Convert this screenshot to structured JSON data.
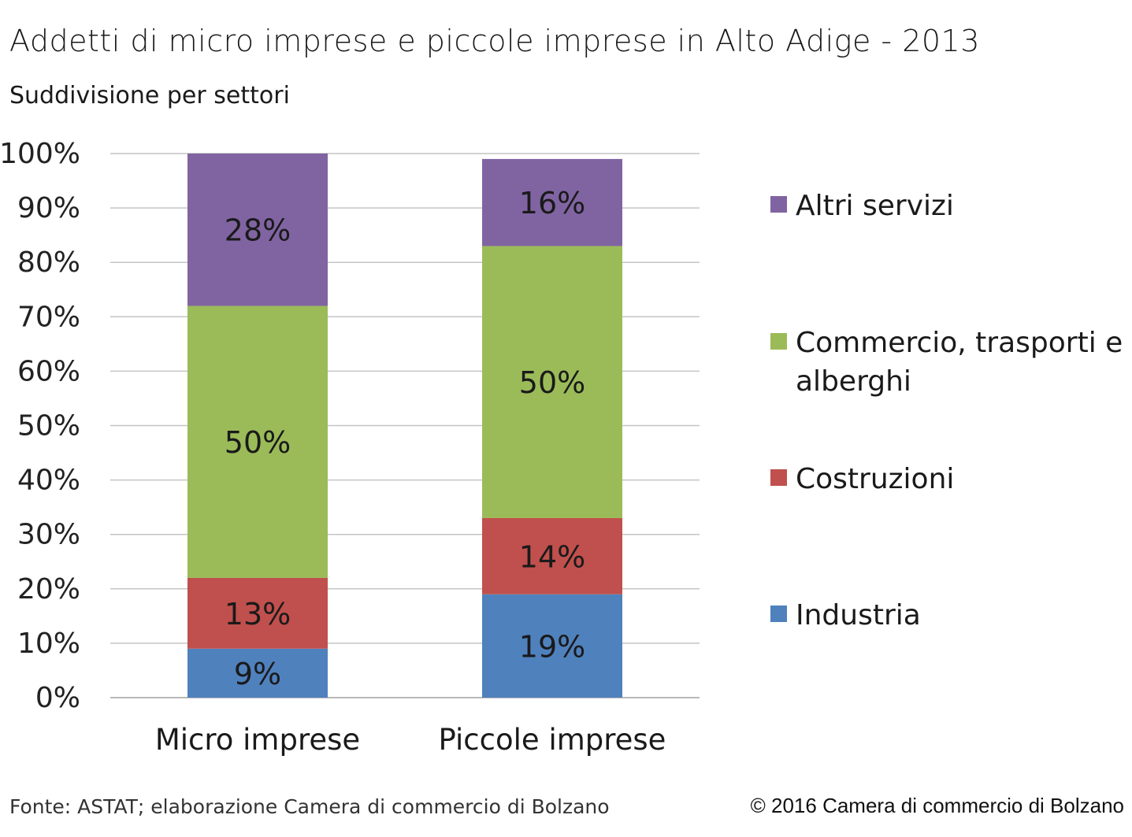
{
  "chart_data": {
    "type": "bar",
    "stacked": true,
    "percent_stacked": true,
    "title": "Addetti di micro imprese e piccole imprese in Alto Adige - 2013",
    "subtitle": "Suddivisione per settori",
    "categories": [
      "Micro imprese",
      "Piccole imprese"
    ],
    "series": [
      {
        "name": "Industria",
        "values": [
          9,
          19
        ],
        "labels": [
          "9%",
          "19%"
        ],
        "color": "#4f81bd"
      },
      {
        "name": "Costruzioni",
        "values": [
          13,
          14
        ],
        "labels": [
          "13%",
          "14%"
        ],
        "color": "#c0504d"
      },
      {
        "name": "Commercio, trasporti e alberghi",
        "values": [
          50,
          50
        ],
        "labels": [
          "50%",
          "50%"
        ],
        "color": "#9bbb59"
      },
      {
        "name": "Altri servizi",
        "values": [
          28,
          16
        ],
        "labels": [
          "28%",
          "16%"
        ],
        "color": "#8064a2"
      }
    ],
    "ylim": [
      0,
      100
    ],
    "yticks": [
      "0%",
      "10%",
      "20%",
      "30%",
      "40%",
      "50%",
      "60%",
      "70%",
      "80%",
      "90%",
      "100%"
    ],
    "grid": true,
    "legend": "right"
  },
  "footer": {
    "source": "Fonte: ASTAT; elaborazione Camera di commercio di Bolzano",
    "copyright": "© 2016 Camera di commercio di Bolzano"
  }
}
